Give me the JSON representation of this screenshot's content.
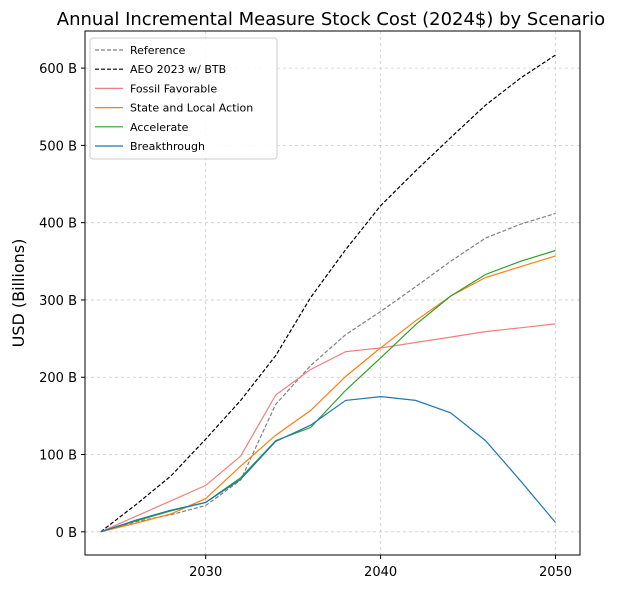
{
  "chart_data": {
    "type": "line",
    "title": "Annual Incremental Measure Stock Cost (2024$) by Scenario",
    "xlabel": "",
    "ylabel": "USD (Billions)",
    "xlim": [
      2023.1,
      2051.4
    ],
    "ylim": [
      -30,
      648
    ],
    "x_ticks": [
      2030,
      2040,
      2050
    ],
    "x_tick_labels": [
      "2030",
      "2040",
      "2050"
    ],
    "y_ticks": [
      0,
      100,
      200,
      300,
      400,
      500,
      600
    ],
    "y_tick_labels": [
      "0 B",
      "100 B",
      "200 B",
      "300 B",
      "400 B",
      "500 B",
      "600 B"
    ],
    "grid": true,
    "legend_position": "top-left",
    "x": [
      2024,
      2026,
      2028,
      2030,
      2032,
      2034,
      2036,
      2038,
      2040,
      2042,
      2044,
      2046,
      2048,
      2050
    ],
    "series": [
      {
        "name": "Reference",
        "color": "#808080",
        "dash": "dashed",
        "values": [
          0,
          13,
          22,
          34,
          67,
          165,
          215,
          255,
          285,
          317,
          350,
          380,
          398,
          412
        ]
      },
      {
        "name": "AEO 2023 w/ BTB",
        "color": "#000000",
        "dash": "dashed",
        "values": [
          0,
          35,
          72,
          120,
          170,
          228,
          303,
          365,
          422,
          467,
          510,
          552,
          587,
          617
        ]
      },
      {
        "name": "Fossil Favorable",
        "color": "#f08080",
        "dash": "solid",
        "values": [
          0,
          20,
          40,
          60,
          98,
          177,
          210,
          233,
          238,
          245,
          252,
          259,
          264,
          269
        ]
      },
      {
        "name": "State and Local Action",
        "color": "#ff7f0e",
        "dash": "solid",
        "values": [
          0,
          11,
          23,
          43,
          85,
          125,
          157,
          201,
          238,
          273,
          305,
          329,
          343,
          357
        ]
      },
      {
        "name": "Accelerate",
        "color": "#2ca02c",
        "dash": "solid",
        "values": [
          0,
          14,
          27,
          38,
          70,
          118,
          135,
          183,
          225,
          268,
          305,
          333,
          350,
          364
        ]
      },
      {
        "name": "Breakthrough",
        "color": "#1f77b4",
        "dash": "solid",
        "values": [
          0,
          15,
          28,
          38,
          68,
          117,
          138,
          170,
          175,
          170,
          154,
          118,
          66,
          12
        ]
      }
    ]
  }
}
